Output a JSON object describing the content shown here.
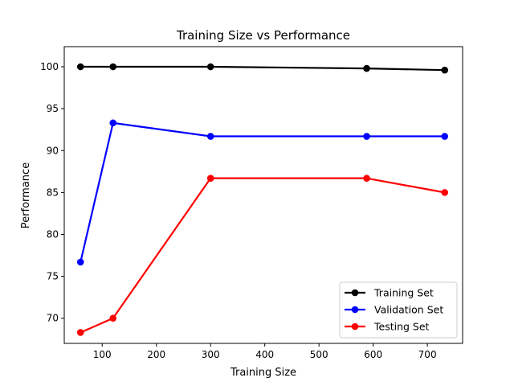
{
  "chart_data": {
    "type": "line",
    "title": "Training Size vs Performance",
    "xlabel": "Training Size",
    "ylabel": "Performance",
    "xlim": [
      30,
      765
    ],
    "ylim": [
      67,
      102.4
    ],
    "xticks": [
      100,
      200,
      300,
      400,
      500,
      600,
      700
    ],
    "yticks": [
      70,
      75,
      80,
      85,
      90,
      95,
      100
    ],
    "x": [
      60,
      120,
      300,
      588,
      732
    ],
    "grid": false,
    "legend": "lower right",
    "series": [
      {
        "name": "Training Set",
        "color": "#000000",
        "values": [
          100,
          100,
          100,
          99.8,
          99.6
        ]
      },
      {
        "name": "Validation Set",
        "color": "#0000ff",
        "values": [
          76.7,
          93.3,
          91.7,
          91.7,
          91.7
        ]
      },
      {
        "name": "Testing Set",
        "color": "#ff0000",
        "values": [
          68.3,
          70.0,
          86.7,
          86.7,
          85.0
        ]
      }
    ]
  }
}
